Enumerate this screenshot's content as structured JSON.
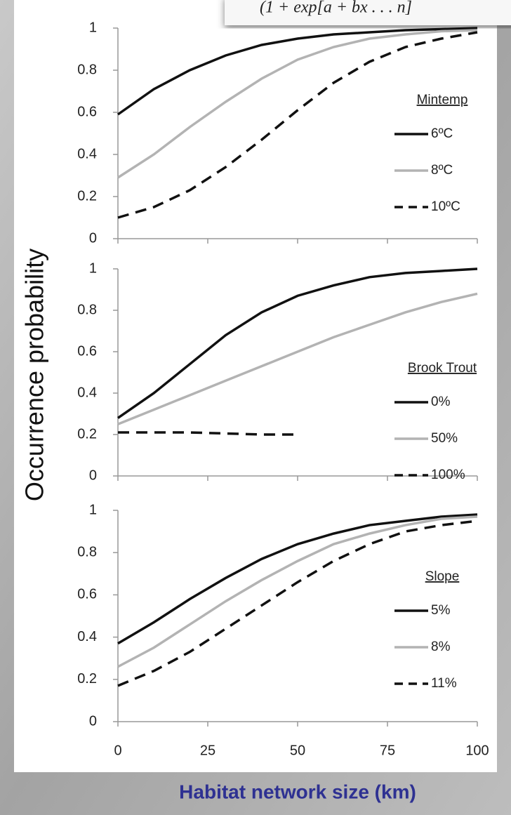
{
  "formula_fragment": "(1 + exp[a + bx . . . n]",
  "chart_data": [
    {
      "type": "line",
      "legend_title": "Mintemp",
      "x": [
        0,
        10,
        20,
        30,
        40,
        50,
        60,
        70,
        80,
        90,
        100
      ],
      "xlim": [
        0,
        100
      ],
      "xticks": [
        0,
        25,
        50,
        75,
        100
      ],
      "ylim": [
        0,
        1
      ],
      "yticks": [
        0,
        0.2,
        0.4,
        0.6,
        0.8,
        1
      ],
      "series": [
        {
          "name": "6ºC",
          "color": "#111111",
          "dashed": false,
          "values": [
            0.59,
            0.71,
            0.8,
            0.87,
            0.92,
            0.95,
            0.97,
            0.98,
            0.99,
            0.995,
            1.0
          ]
        },
        {
          "name": "8ºC",
          "color": "#b3b3b3",
          "dashed": false,
          "values": [
            0.29,
            0.4,
            0.53,
            0.65,
            0.76,
            0.85,
            0.91,
            0.95,
            0.97,
            0.985,
            0.99
          ]
        },
        {
          "name": "10ºC",
          "color": "#111111",
          "dashed": true,
          "values": [
            0.1,
            0.15,
            0.23,
            0.34,
            0.47,
            0.61,
            0.74,
            0.84,
            0.91,
            0.95,
            0.98
          ]
        }
      ]
    },
    {
      "type": "line",
      "legend_title": "Brook Trout",
      "y_label": "Occurrence probability",
      "x": [
        0,
        10,
        20,
        30,
        40,
        50,
        60,
        70,
        80,
        90,
        100
      ],
      "xlim": [
        0,
        100
      ],
      "xticks": [
        0,
        25,
        50,
        75,
        100
      ],
      "ylim": [
        0,
        1
      ],
      "yticks": [
        0,
        0.2,
        0.4,
        0.6,
        0.8,
        1
      ],
      "series": [
        {
          "name": "0%",
          "color": "#111111",
          "dashed": false,
          "values": [
            0.28,
            0.4,
            0.54,
            0.68,
            0.79,
            0.87,
            0.92,
            0.96,
            0.98,
            0.99,
            1.0
          ]
        },
        {
          "name": "50%",
          "color": "#b3b3b3",
          "dashed": false,
          "values": [
            0.25,
            0.32,
            0.39,
            0.46,
            0.53,
            0.6,
            0.67,
            0.73,
            0.79,
            0.84,
            0.88
          ]
        },
        {
          "name": "100%",
          "color": "#111111",
          "dashed": true,
          "values": [
            0.21,
            0.21,
            0.21,
            0.205,
            0.2,
            0.2,
            null,
            null,
            null,
            null,
            null
          ]
        }
      ]
    },
    {
      "type": "line",
      "legend_title": "Slope",
      "x_label": "Habitat network size (km)",
      "x": [
        0,
        10,
        20,
        30,
        40,
        50,
        60,
        70,
        80,
        90,
        100
      ],
      "xlim": [
        0,
        100
      ],
      "xticks": [
        0,
        25,
        50,
        75,
        100
      ],
      "ylim": [
        0,
        1
      ],
      "yticks": [
        0,
        0.2,
        0.4,
        0.6,
        0.8,
        1
      ],
      "series": [
        {
          "name": "5%",
          "color": "#111111",
          "dashed": false,
          "values": [
            0.37,
            0.47,
            0.58,
            0.68,
            0.77,
            0.84,
            0.89,
            0.93,
            0.95,
            0.97,
            0.98
          ]
        },
        {
          "name": "8%",
          "color": "#b3b3b3",
          "dashed": false,
          "values": [
            0.26,
            0.35,
            0.46,
            0.57,
            0.67,
            0.76,
            0.84,
            0.89,
            0.93,
            0.96,
            0.97
          ]
        },
        {
          "name": "11%",
          "color": "#111111",
          "dashed": true,
          "values": [
            0.17,
            0.24,
            0.33,
            0.44,
            0.55,
            0.66,
            0.76,
            0.84,
            0.9,
            0.93,
            0.95
          ]
        }
      ]
    }
  ]
}
